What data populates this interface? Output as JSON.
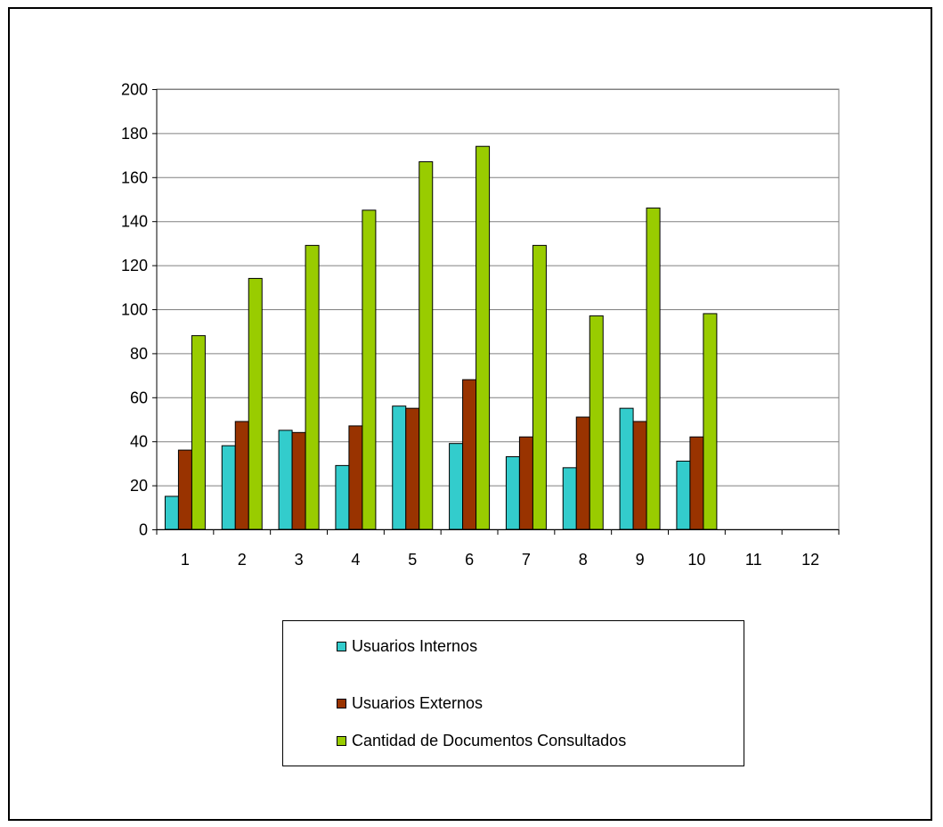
{
  "chart_data": {
    "type": "bar",
    "categories": [
      "1",
      "2",
      "3",
      "4",
      "5",
      "6",
      "7",
      "8",
      "9",
      "10",
      "11",
      "12"
    ],
    "series": [
      {
        "name": "Usuarios Internos",
        "color": "#33CCCC",
        "values": [
          15,
          38,
          45,
          29,
          56,
          39,
          33,
          28,
          55,
          31,
          null,
          null
        ]
      },
      {
        "name": "Usuarios Externos",
        "color": "#993300",
        "values": [
          36,
          49,
          44,
          47,
          55,
          68,
          42,
          51,
          49,
          42,
          null,
          null
        ]
      },
      {
        "name": "Cantidad de Documentos Consultados",
        "color": "#99CC00",
        "values": [
          88,
          114,
          129,
          145,
          167,
          174,
          129,
          97,
          146,
          98,
          null,
          null
        ]
      }
    ],
    "yticks": [
      "0",
      "20",
      "40",
      "60",
      "80",
      "100",
      "120",
      "140",
      "160",
      "180",
      "200"
    ],
    "ylim": [
      0,
      200
    ],
    "grid": true,
    "legend_position": "bottom"
  }
}
